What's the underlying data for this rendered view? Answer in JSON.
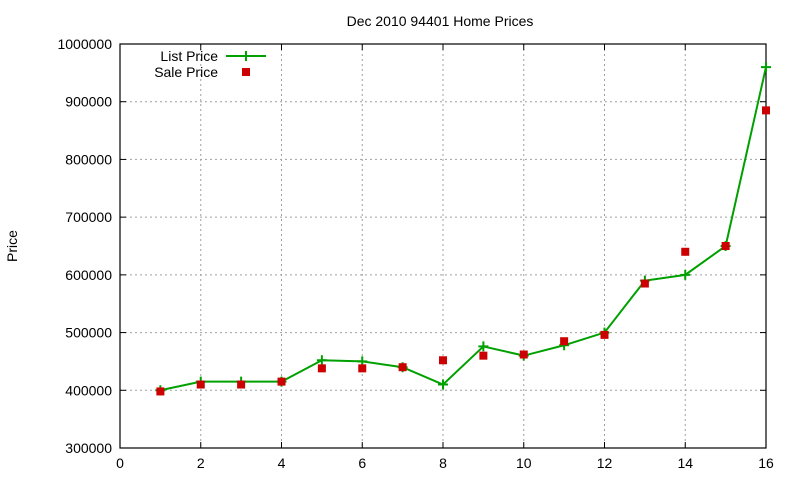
{
  "chart_data": {
    "type": "line",
    "title": "Dec 2010 94401 Home Prices",
    "xlabel": "",
    "ylabel": "Price",
    "xlim": [
      0,
      16
    ],
    "ylim": [
      300000,
      1000000
    ],
    "xticks": [
      0,
      2,
      4,
      6,
      8,
      10,
      12,
      14,
      16
    ],
    "yticks": [
      300000,
      400000,
      500000,
      600000,
      700000,
      800000,
      900000,
      1000000
    ],
    "grid": true,
    "legend_position": "top-left",
    "x": [
      1,
      2,
      3,
      4,
      5,
      6,
      7,
      8,
      9,
      10,
      11,
      12,
      13,
      14,
      15,
      16
    ],
    "series": [
      {
        "name": "List Price",
        "style": "linespoints",
        "marker": "plus",
        "color": "#00a000",
        "values": [
          400000,
          415000,
          415000,
          415000,
          452000,
          450000,
          440000,
          410000,
          476000,
          460000,
          478000,
          500000,
          590000,
          600000,
          650000,
          960000
        ]
      },
      {
        "name": "Sale Price",
        "style": "points",
        "marker": "square",
        "color": "#cc0000",
        "values": [
          398000,
          410000,
          410000,
          415000,
          438000,
          438000,
          440000,
          452000,
          460000,
          462000,
          485000,
          496000,
          585000,
          640000,
          650000,
          885000
        ]
      }
    ]
  }
}
